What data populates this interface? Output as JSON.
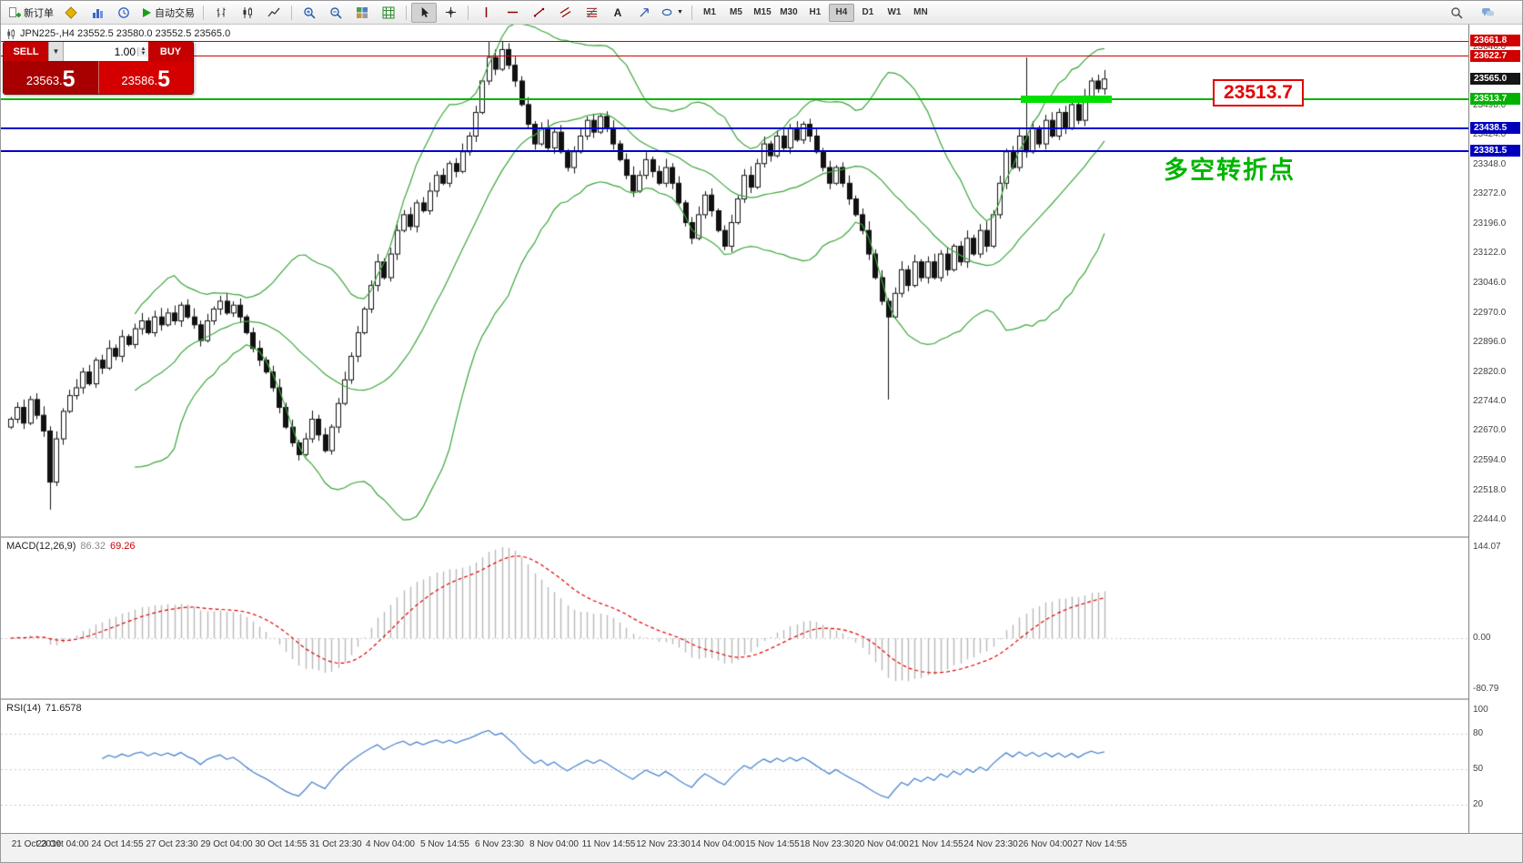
{
  "toolbar": {
    "new_order_label": "新订单",
    "auto_trading_label": "自动交易",
    "text_tool_label": "A",
    "timeframes": [
      "M1",
      "M5",
      "M15",
      "M30",
      "H1",
      "H4",
      "D1",
      "W1",
      "MN"
    ],
    "active_timeframe": "H4"
  },
  "chart": {
    "ohlc_header": "JPN225-,H4 23552.5 23580.0 23552.5 23565.0",
    "trade_panel": {
      "sell_label": "SELL",
      "buy_label": "BUY",
      "lot": "1.00",
      "sell_price": "23563.",
      "sell_price_big": "5",
      "buy_price": "23586.",
      "buy_price_big": "5"
    },
    "annotations": {
      "price_label": "23513.7",
      "note": "多空转折点"
    },
    "hlines": [
      {
        "price": 23661.8,
        "color": "#d00000",
        "width": 1
      },
      {
        "price": 23622.7,
        "color": "#d00000",
        "width": 1
      },
      {
        "price": 23513.7,
        "color": "#00b300",
        "width": 2
      },
      {
        "price": 23438.5,
        "color": "#0000cc",
        "width": 2
      },
      {
        "price": 23381.5,
        "color": "#0000cc",
        "width": 2
      }
    ],
    "highlight_segment": {
      "price": 23513.7,
      "start_index": 155,
      "end_index": 168
    },
    "axis_tags": [
      {
        "text": "23661.8",
        "bg": "#d00000"
      },
      {
        "text": "23622.7",
        "bg": "#d00000"
      },
      {
        "text": "23565.0",
        "bg": "#151515"
      },
      {
        "text": "23513.7",
        "bg": "#00b300"
      },
      {
        "text": "23438.5",
        "bg": "#0000bb"
      },
      {
        "text": "23381.5",
        "bg": "#0000bb"
      }
    ],
    "axis_ticks": [
      "23646.0",
      "23498.0",
      "23424.0",
      "23348.0",
      "23272.0",
      "23196.0",
      "23122.0",
      "23046.0",
      "22970.0",
      "22896.0",
      "22820.0",
      "22744.0",
      "22670.0",
      "22594.0",
      "22518.0",
      "22444.0"
    ],
    "time_labels": [
      "21 Oct 2019",
      "23 Oct 04:00",
      "24 Oct 14:55",
      "27 Oct 23:30",
      "29 Oct 04:00",
      "30 Oct 14:55",
      "31 Oct 23:30",
      "4 Nov 04:00",
      "5 Nov 14:55",
      "6 Nov 23:30",
      "8 Nov 04:00",
      "11 Nov 14:55",
      "12 Nov 23:30",
      "14 Nov 04:00",
      "15 Nov 14:55",
      "18 Nov 23:30",
      "20 Nov 04:00",
      "21 Nov 14:55",
      "24 Nov 23:30",
      "26 Nov 04:00",
      "27 Nov 14:55"
    ]
  },
  "macd": {
    "name": "MACD(12,26,9)",
    "value_main": "86.32",
    "value_signal": "69.26",
    "levels": [
      "144.07",
      "0.00",
      "-80.79"
    ]
  },
  "rsi": {
    "name": "RSI(14)",
    "value": "71.6578",
    "levels": [
      "100",
      "80",
      "50",
      "20"
    ]
  },
  "chart_data": {
    "type": "candlestick",
    "symbol": "JPN225-",
    "timeframe": "H4",
    "title": "JPN225-,H4",
    "ohlc_current": {
      "open": 23552.5,
      "high": 23580.0,
      "low": 23552.5,
      "close": 23565.0
    },
    "y_axis_range": [
      22444.0,
      23661.8
    ],
    "levels": {
      "resistance": [
        23661.8,
        23622.7
      ],
      "pivot": 23513.7,
      "support": [
        23438.5,
        23381.5
      ]
    },
    "open_first": 22680,
    "closes": [
      22700,
      22730,
      22690,
      22750,
      22710,
      22670,
      22540,
      22650,
      22720,
      22760,
      22780,
      22820,
      22790,
      22850,
      22830,
      22880,
      22860,
      22910,
      22890,
      22930,
      22950,
      22920,
      22960,
      22940,
      22970,
      22950,
      22990,
      22960,
      22940,
      22900,
      22950,
      22980,
      23000,
      22970,
      22990,
      22960,
      22920,
      22880,
      22850,
      22820,
      22780,
      22730,
      22680,
      22640,
      22610,
      22650,
      22700,
      22660,
      22620,
      22680,
      22740,
      22800,
      22860,
      22920,
      22980,
      23040,
      23100,
      23060,
      23120,
      23180,
      23220,
      23190,
      23250,
      23230,
      23280,
      23320,
      23300,
      23350,
      23330,
      23380,
      23420,
      23480,
      23560,
      23620,
      23590,
      23640,
      23600,
      23560,
      23500,
      23450,
      23400,
      23440,
      23390,
      23430,
      23380,
      23340,
      23380,
      23420,
      23460,
      23430,
      23470,
      23440,
      23400,
      23360,
      23320,
      23280,
      23320,
      23360,
      23330,
      23300,
      23340,
      23300,
      23250,
      23200,
      23160,
      23220,
      23270,
      23230,
      23180,
      23140,
      23200,
      23260,
      23320,
      23290,
      23350,
      23400,
      23370,
      23420,
      23390,
      23440,
      23410,
      23450,
      23420,
      23380,
      23340,
      23300,
      23340,
      23300,
      23260,
      23220,
      23180,
      23120,
      23060,
      23000,
      22960,
      23020,
      23080,
      23040,
      23100,
      23060,
      23100,
      23060,
      23120,
      23080,
      23140,
      23100,
      23160,
      23120,
      23180,
      23140,
      23220,
      23300,
      23380,
      23340,
      23420,
      23380,
      23440,
      23400,
      23460,
      23420,
      23480,
      23440,
      23500,
      23460,
      23520,
      23560,
      23540,
      23565
    ],
    "wick_overrides": {
      "6": {
        "low": 22470
      },
      "73": {
        "high": 23660
      },
      "75": {
        "high": 23662
      },
      "134": {
        "low": 22750
      },
      "155": {
        "high": 23620
      }
    },
    "indicators": [
      {
        "type": "bollinger",
        "period": 20,
        "deviation": 2,
        "color": "#3aa63a"
      },
      {
        "type": "macd",
        "fast": 12,
        "slow": 26,
        "signal": 9,
        "main_value": 86.32,
        "signal_value": 69.26,
        "axis": [
          144.07,
          0.0,
          -80.79
        ]
      },
      {
        "type": "rsi",
        "period": 14,
        "value": 71.6578,
        "levels": [
          20,
          50,
          80
        ]
      }
    ]
  }
}
